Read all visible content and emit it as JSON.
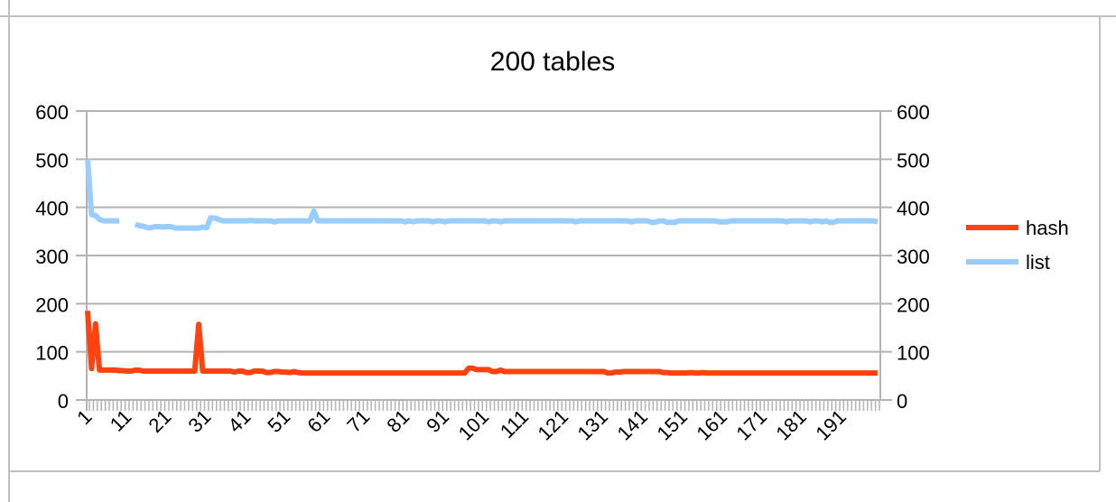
{
  "chart_data": {
    "type": "line",
    "title": "200 tables",
    "xlabel": "",
    "ylabel": "",
    "x_tick_labels": [
      "1",
      "11",
      "21",
      "31",
      "41",
      "51",
      "61",
      "71",
      "81",
      "91",
      "101",
      "111",
      "121",
      "131",
      "141",
      "151",
      "161",
      "171",
      "181",
      "191"
    ],
    "x_range": [
      1,
      200
    ],
    "ylim": [
      0,
      600
    ],
    "y_ticks": [
      0,
      100,
      200,
      300,
      400,
      500,
      600
    ],
    "secondary_y_axis": true,
    "grid": true,
    "legend_placement": "right",
    "series": [
      {
        "name": "hash",
        "color": "#ff420e",
        "values": [
          185,
          65,
          158,
          62,
          62,
          62,
          62,
          62,
          61,
          61,
          60,
          60,
          62,
          62,
          60,
          60,
          60,
          60,
          60,
          60,
          60,
          60,
          60,
          60,
          60,
          60,
          60,
          60,
          157,
          60,
          60,
          60,
          60,
          60,
          60,
          60,
          60,
          58,
          60,
          60,
          57,
          57,
          60,
          60,
          60,
          57,
          57,
          59,
          59,
          58,
          58,
          57,
          59,
          57,
          56,
          56,
          56,
          56,
          56,
          56,
          56,
          56,
          56,
          56,
          56,
          56,
          56,
          56,
          56,
          56,
          56,
          56,
          56,
          56,
          56,
          56,
          56,
          56,
          56,
          56,
          56,
          56,
          56,
          56,
          56,
          56,
          56,
          56,
          56,
          56,
          56,
          56,
          56,
          56,
          56,
          56,
          66,
          66,
          63,
          63,
          63,
          63,
          59,
          59,
          62,
          59,
          59,
          59,
          59,
          59,
          59,
          59,
          59,
          59,
          59,
          59,
          59,
          59,
          59,
          59,
          59,
          59,
          59,
          59,
          59,
          59,
          59,
          59,
          59,
          59,
          59,
          56,
          56,
          58,
          58,
          59,
          59,
          59,
          59,
          59,
          59,
          59,
          59,
          59,
          59,
          57,
          57,
          56,
          56,
          56,
          56,
          56,
          57,
          56,
          56,
          57,
          56,
          56,
          56,
          56,
          56,
          56,
          56,
          56,
          56,
          56,
          56,
          56,
          56,
          56,
          56,
          56,
          56,
          56,
          56,
          56,
          56,
          56,
          56,
          56,
          56,
          56,
          56,
          56,
          56,
          56,
          56,
          56,
          56,
          56,
          56,
          56,
          56,
          56,
          56,
          56,
          56,
          56,
          56,
          56
        ]
      },
      {
        "name": "list",
        "color": "#99ccff",
        "values": [
          500,
          385,
          383,
          375,
          372,
          372,
          372,
          372,
          372,
          null,
          null,
          null,
          365,
          362,
          361,
          358,
          358,
          360,
          360,
          359,
          360,
          360,
          357,
          357,
          357,
          357,
          357,
          357,
          357,
          359,
          358,
          378,
          378,
          375,
          372,
          372,
          372,
          372,
          372,
          372,
          372,
          373,
          372,
          372,
          372,
          372,
          372,
          370,
          372,
          372,
          372,
          372,
          372,
          372,
          372,
          372,
          372,
          392,
          372,
          372,
          372,
          372,
          372,
          372,
          372,
          372,
          372,
          372,
          372,
          372,
          372,
          372,
          372,
          372,
          372,
          372,
          372,
          372,
          372,
          372,
          370,
          372,
          370,
          372,
          372,
          372,
          372,
          370,
          372,
          372,
          370,
          372,
          372,
          372,
          372,
          372,
          372,
          372,
          372,
          372,
          372,
          370,
          372,
          372,
          370,
          372,
          372,
          372,
          372,
          372,
          372,
          372,
          372,
          372,
          372,
          372,
          372,
          372,
          372,
          372,
          372,
          372,
          372,
          370,
          372,
          372,
          372,
          372,
          372,
          372,
          372,
          372,
          372,
          372,
          372,
          372,
          372,
          370,
          372,
          372,
          372,
          372,
          369,
          369,
          372,
          372,
          369,
          369,
          369,
          372,
          372,
          372,
          372,
          372,
          372,
          372,
          372,
          372,
          372,
          370,
          370,
          370,
          372,
          372,
          372,
          372,
          372,
          372,
          372,
          372,
          372,
          372,
          372,
          372,
          372,
          372,
          370,
          372,
          372,
          372,
          372,
          372,
          370,
          372,
          372,
          370,
          372,
          369,
          369,
          372,
          372,
          372,
          372,
          372,
          372,
          372,
          372,
          372,
          372,
          370
        ]
      }
    ]
  }
}
